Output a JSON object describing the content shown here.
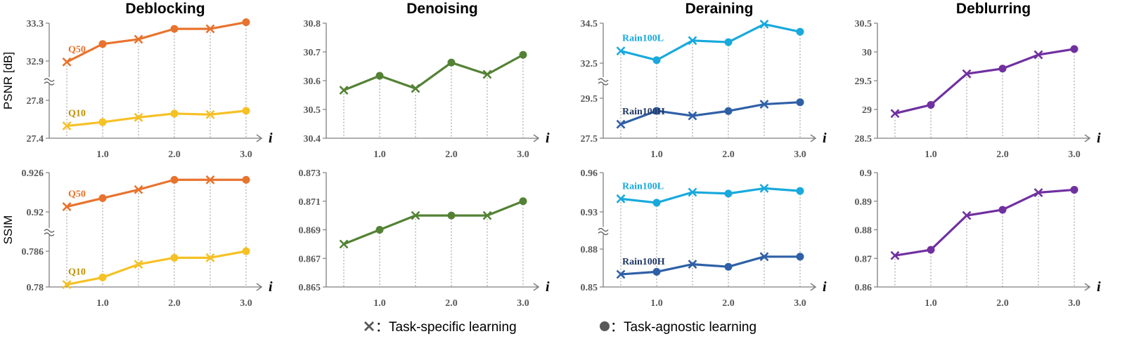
{
  "legend": {
    "specific_label": "：Task-specific learning",
    "agnostic_label": "：Task-agnostic learning"
  },
  "row_labels": [
    "PSNR [dB]",
    "SSIM"
  ],
  "colors": {
    "q50": "#e8732e",
    "q10": "#f6c125",
    "denoise": "#548235",
    "rain_l": "#19a9dc",
    "rain_h": "#2f60a6",
    "deblur": "#7030a0",
    "q10_label": "#bf9000",
    "rain_h_label": "#203864"
  },
  "chart_data": [
    {
      "type": "line",
      "title": "Deblocking",
      "row": 0,
      "col": 0,
      "axis_var": "i",
      "x": [
        0.5,
        1.0,
        1.5,
        2.0,
        2.5,
        3.0
      ],
      "x_ticks": [
        "1.0",
        "2.0",
        "3.0"
      ],
      "broken_axis": true,
      "y_ticks_upper": [
        "33.3",
        "32.9"
      ],
      "ylim_upper": [
        32.9,
        33.3
      ],
      "y_ticks_lower": [
        "27.8",
        "27.4"
      ],
      "ylim_lower": [
        27.4,
        27.8
      ],
      "series": [
        {
          "name": "Q50",
          "color": "q50",
          "band": "upper",
          "values": [
            32.89,
            33.08,
            33.13,
            33.24,
            33.24,
            33.31
          ],
          "markers": [
            "x",
            "o",
            "x",
            "o",
            "x",
            "o"
          ]
        },
        {
          "name": "Q10",
          "color": "q10",
          "band": "lower",
          "label_color": "q10_label",
          "values": [
            27.53,
            27.57,
            27.62,
            27.66,
            27.65,
            27.69
          ],
          "markers": [
            "x",
            "o",
            "x",
            "o",
            "x",
            "o"
          ]
        }
      ]
    },
    {
      "type": "line",
      "title": "Denoising",
      "row": 0,
      "col": 1,
      "axis_var": "i",
      "x": [
        0.5,
        1.0,
        1.5,
        2.0,
        2.5,
        3.0
      ],
      "x_ticks": [
        "1.0",
        "2.0",
        "3.0"
      ],
      "broken_axis": false,
      "y_ticks": [
        "30.8",
        "30.7",
        "30.6",
        "30.5",
        "30.4"
      ],
      "ylim": [
        30.4,
        30.8
      ],
      "series": [
        {
          "name": "",
          "color": "denoise",
          "values": [
            30.567,
            30.617,
            30.573,
            30.663,
            30.622,
            30.69
          ],
          "markers": [
            "x",
            "o",
            "x",
            "o",
            "x",
            "o"
          ]
        }
      ]
    },
    {
      "type": "line",
      "title": "Deraining",
      "row": 0,
      "col": 2,
      "axis_var": "i",
      "x": [
        0.5,
        1.0,
        1.5,
        2.0,
        2.5,
        3.0
      ],
      "x_ticks": [
        "1.0",
        "2.0",
        "3.0"
      ],
      "broken_axis": true,
      "y_ticks_upper": [
        "34.5",
        "32.5"
      ],
      "ylim_upper": [
        32.5,
        34.5
      ],
      "y_ticks_lower": [
        "29.5",
        "27.5"
      ],
      "ylim_lower": [
        27.5,
        29.5
      ],
      "series": [
        {
          "name": "Rain100L",
          "color": "rain_l",
          "band": "upper",
          "values": [
            33.11,
            32.65,
            33.63,
            33.55,
            34.45,
            34.07
          ],
          "markers": [
            "x",
            "o",
            "x",
            "o",
            "x",
            "o"
          ]
        },
        {
          "name": "Rain100H",
          "color": "rain_h",
          "band": "lower",
          "label_color": "rain_h_label",
          "values": [
            28.2,
            28.87,
            28.62,
            28.86,
            29.2,
            29.3
          ],
          "markers": [
            "x",
            "o",
            "x",
            "o",
            "x",
            "o"
          ]
        }
      ]
    },
    {
      "type": "line",
      "title": "Deblurring",
      "row": 0,
      "col": 3,
      "axis_var": "i",
      "x": [
        0.5,
        1.0,
        1.5,
        2.0,
        2.5,
        3.0
      ],
      "x_ticks": [
        "1.0",
        "2.0",
        "3.0"
      ],
      "broken_axis": false,
      "y_ticks": [
        "30.5",
        "30",
        "29.5",
        "29",
        "28.5"
      ],
      "ylim": [
        28.5,
        30.5
      ],
      "series": [
        {
          "name": "",
          "color": "deblur",
          "values": [
            28.93,
            29.08,
            29.62,
            29.71,
            29.95,
            30.05
          ],
          "markers": [
            "x",
            "o",
            "x",
            "o",
            "x",
            "o"
          ]
        }
      ]
    },
    {
      "type": "line",
      "title": "",
      "row": 1,
      "col": 0,
      "axis_var": "i",
      "x": [
        0.5,
        1.0,
        1.5,
        2.0,
        2.5,
        3.0
      ],
      "x_ticks": [
        "1.0",
        "2.0",
        "3.0"
      ],
      "broken_axis": true,
      "y_ticks_upper": [
        "0.926",
        "0.92"
      ],
      "ylim_upper": [
        0.92,
        0.926
      ],
      "y_ticks_lower": [
        "0.786",
        "0.78"
      ],
      "ylim_lower": [
        0.78,
        0.786
      ],
      "series": [
        {
          "name": "Q50",
          "color": "q50",
          "band": "upper",
          "values": [
            0.9208,
            0.9221,
            0.9234,
            0.9249,
            0.9249,
            0.9249
          ],
          "markers": [
            "x",
            "o",
            "x",
            "o",
            "x",
            "o"
          ]
        },
        {
          "name": "Q10",
          "color": "q10",
          "band": "lower",
          "label_color": "q10_label",
          "values": [
            0.7804,
            0.7816,
            0.7838,
            0.7849,
            0.7849,
            0.786
          ],
          "markers": [
            "x",
            "o",
            "x",
            "o",
            "x",
            "o"
          ]
        }
      ]
    },
    {
      "type": "line",
      "title": "",
      "row": 1,
      "col": 1,
      "axis_var": "i",
      "x": [
        0.5,
        1.0,
        1.5,
        2.0,
        2.5,
        3.0
      ],
      "x_ticks": [
        "1.0",
        "2.0",
        "3.0"
      ],
      "broken_axis": false,
      "y_ticks": [
        "0.873",
        "0.871",
        "0.869",
        "0.867",
        "0.865"
      ],
      "ylim": [
        0.865,
        0.873
      ],
      "series": [
        {
          "name": "",
          "color": "denoise",
          "values": [
            0.868,
            0.869,
            0.87,
            0.87,
            0.87,
            0.871
          ],
          "markers": [
            "x",
            "o",
            "x",
            "o",
            "x",
            "o"
          ]
        }
      ]
    },
    {
      "type": "line",
      "title": "",
      "row": 1,
      "col": 2,
      "axis_var": "i",
      "x": [
        0.5,
        1.0,
        1.5,
        2.0,
        2.5,
        3.0
      ],
      "x_ticks": [
        "1.0",
        "2.0",
        "3.0"
      ],
      "broken_axis": true,
      "y_ticks_upper": [
        "0.96",
        "0.93"
      ],
      "ylim_upper": [
        0.93,
        0.96
      ],
      "y_ticks_lower": [
        "0.88",
        "0.85"
      ],
      "ylim_lower": [
        0.85,
        0.88
      ],
      "series": [
        {
          "name": "Rain100L",
          "color": "rain_l",
          "band": "upper",
          "values": [
            0.94,
            0.937,
            0.945,
            0.944,
            0.948,
            0.946
          ],
          "markers": [
            "x",
            "o",
            "x",
            "o",
            "x",
            "o"
          ]
        },
        {
          "name": "Rain100H",
          "color": "rain_h",
          "band": "lower",
          "label_color": "rain_h_label",
          "values": [
            0.86,
            0.862,
            0.868,
            0.866,
            0.874,
            0.874
          ],
          "markers": [
            "x",
            "o",
            "x",
            "o",
            "x",
            "o"
          ]
        }
      ]
    },
    {
      "type": "line",
      "title": "",
      "row": 1,
      "col": 3,
      "axis_var": "i",
      "x": [
        0.5,
        1.0,
        1.5,
        2.0,
        2.5,
        3.0
      ],
      "x_ticks": [
        "1.0",
        "2.0",
        "3.0"
      ],
      "broken_axis": false,
      "y_ticks": [
        "0.9",
        "0.89",
        "0.88",
        "0.87",
        "0.86"
      ],
      "ylim": [
        0.86,
        0.9
      ],
      "series": [
        {
          "name": "",
          "color": "deblur",
          "values": [
            0.871,
            0.873,
            0.885,
            0.887,
            0.893,
            0.894
          ],
          "markers": [
            "x",
            "o",
            "x",
            "o",
            "x",
            "o"
          ]
        }
      ]
    }
  ]
}
